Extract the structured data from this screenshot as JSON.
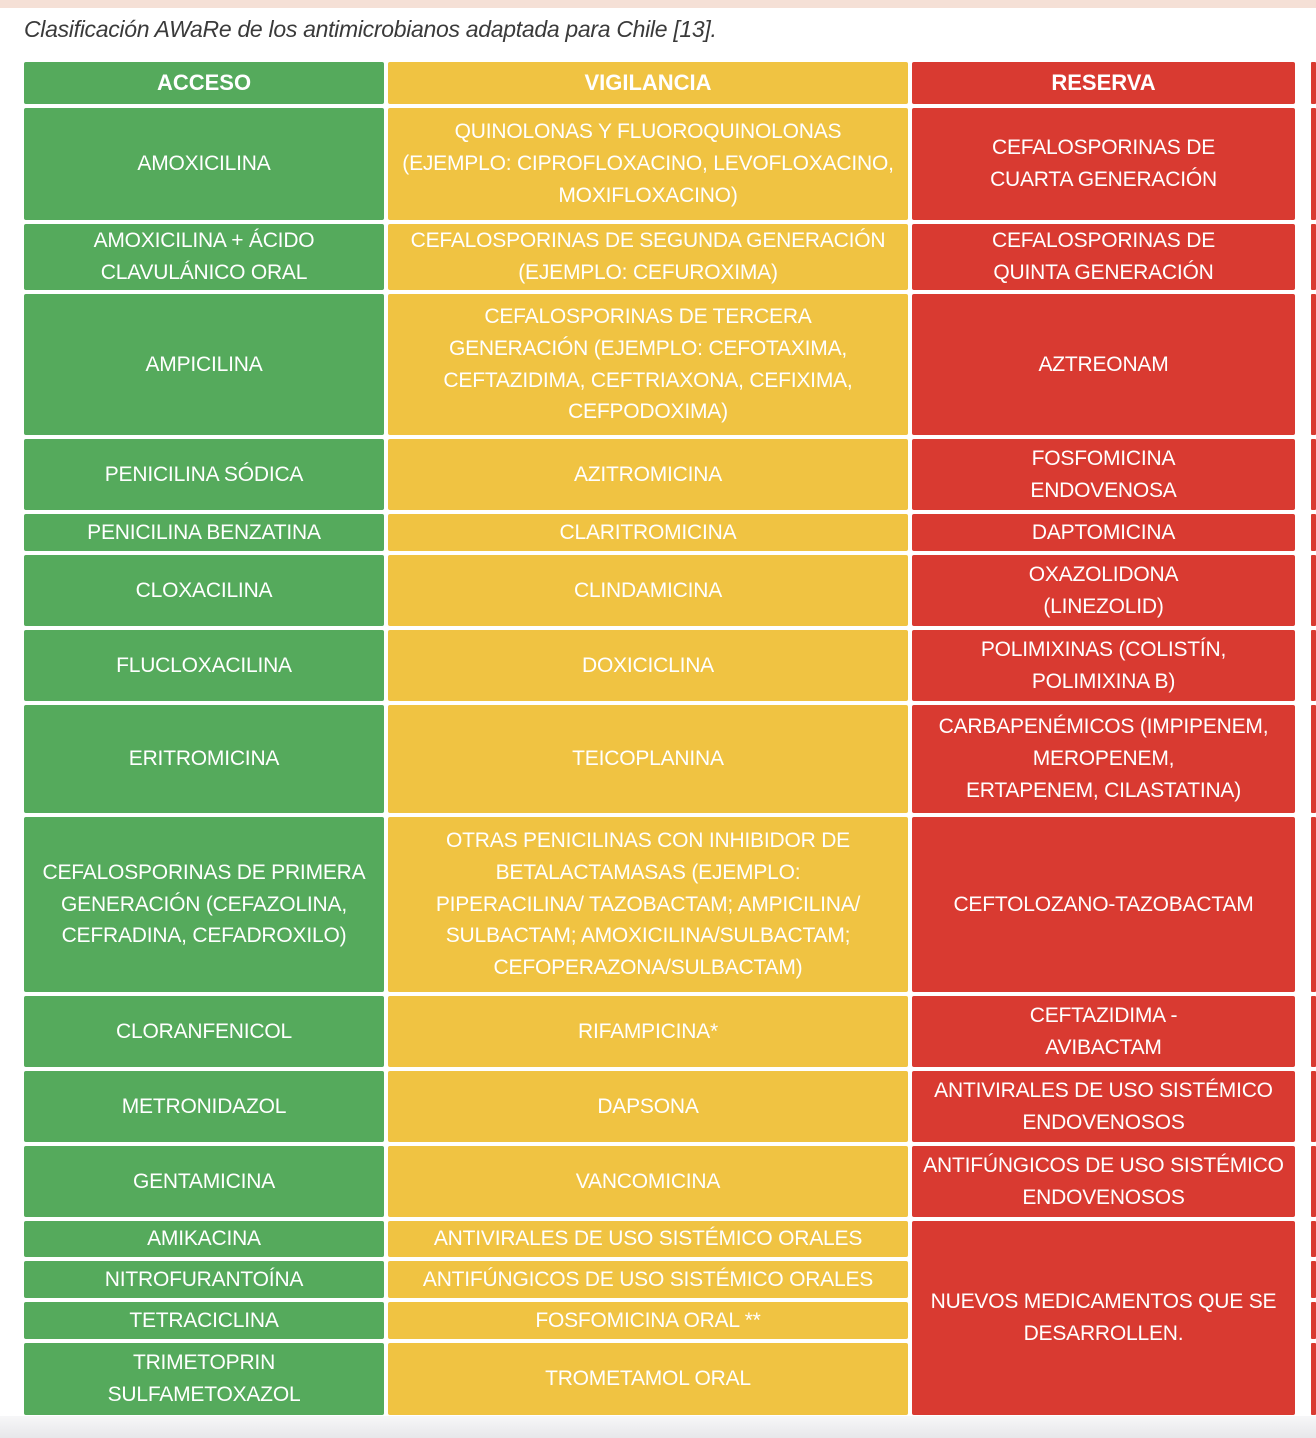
{
  "page": {
    "caption": "Clasificación AWaRe de los antimicrobianos adaptada para Chile [13]."
  },
  "colors": {
    "access_green": "#55aa5c",
    "watch_yellow": "#f0c342",
    "reserve_red": "#d93a31",
    "cell_text": "#ffffff",
    "caption_text": "#3a3a3a",
    "top_strip": "#f5e0d6",
    "bottom_strip": "#e7e7ea"
  },
  "table": {
    "headers": [
      {
        "key": "acceso",
        "label": "ACCESO",
        "color": "#55aa5c"
      },
      {
        "key": "vigilancia",
        "label": "VIGILANCIA",
        "color": "#f0c342"
      },
      {
        "key": "reserva",
        "label": "RESERVA",
        "color": "#d93a31"
      }
    ],
    "rows": [
      {
        "acceso": "AMOXICILINA",
        "vigilancia": "QUINOLONAS Y FLUOROQUINOLONAS\n(EJEMPLO: CIPROFLOXACINO, LEVOFLOXACINO,\nMOXIFLOXACINO)"
      },
      {
        "acceso": "AMOXICILINA + ÁCIDO\nCLAVULÁNICO ORAL",
        "vigilancia": "CEFALOSPORINAS DE SEGUNDA GENERACIÓN\n(EJEMPLO: CEFUROXIMA)"
      },
      {
        "acceso": "AMPICILINA",
        "vigilancia": "CEFALOSPORINAS DE TERCERA\nGENERACIÓN (EJEMPLO: CEFOTAXIMA,\nCEFTAZIDIMA, CEFTRIAXONA, CEFIXIMA,\nCEFPODOXIMA)"
      },
      {
        "acceso": "PENICILINA SÓDICA",
        "vigilancia": "AZITROMICINA"
      },
      {
        "acceso": "PENICILINA BENZATINA",
        "vigilancia": "CLARITROMICINA"
      },
      {
        "acceso": "CLOXACILINA",
        "vigilancia": "CLINDAMICINA"
      },
      {
        "acceso": "FLUCLOXACILINA",
        "vigilancia": "DOXICICLINA"
      },
      {
        "acceso": "ERITROMICINA",
        "vigilancia": "TEICOPLANINA"
      },
      {
        "acceso": "CEFALOSPORINAS DE PRIMERA\nGENERACIÓN (CEFAZOLINA,\nCEFRADINA, CEFADROXILO)",
        "vigilancia": "OTRAS PENICILINAS CON INHIBIDOR DE\nBETALACTAMASAS (EJEMPLO:\nPIPERACILINA/ TAZOBACTAM; AMPICILINA/\nSULBACTAM; AMOXICILINA/SULBACTAM;\nCEFOPERAZONA/SULBACTAM)"
      },
      {
        "acceso": "CLORANFENICOL",
        "vigilancia": "RIFAMPICINA*"
      },
      {
        "acceso": "METRONIDAZOL",
        "vigilancia": "DAPSONA"
      },
      {
        "acceso": "GENTAMICINA",
        "vigilancia": "VANCOMICINA"
      },
      {
        "acceso": "AMIKACINA",
        "vigilancia": "ANTIVIRALES DE USO SISTÉMICO ORALES"
      },
      {
        "acceso": "NITROFURANTOÍNA",
        "vigilancia": "ANTIFÚNGICOS DE USO SISTÉMICO ORALES"
      },
      {
        "acceso": "TETRACICLINA",
        "vigilancia": "FOSFOMICINA ORAL **"
      },
      {
        "acceso": "TRIMETOPRIN\nSULFAMETOXAZOL",
        "vigilancia": "TROMETAMOL ORAL"
      }
    ],
    "reserva_cells": [
      {
        "text": "CEFALOSPORINAS DE\nCUARTA GENERACIÓN",
        "span": 1
      },
      {
        "text": "CEFALOSPORINAS DE\nQUINTA GENERACIÓN",
        "span": 1
      },
      {
        "text": "AZTREONAM",
        "span": 1
      },
      {
        "text": "FOSFOMICINA\nENDOVENOSA",
        "span": 1
      },
      {
        "text": "DAPTOMICINA",
        "span": 1
      },
      {
        "text": "OXAZOLIDONA\n(LINEZOLID)",
        "span": 1
      },
      {
        "text": "POLIMIXINAS (COLISTÍN,\nPOLIMIXINA B)",
        "span": 1
      },
      {
        "text": "CARBAPENÉMICOS (IMPIPENEM,\nMEROPENEM,\nERTAPENEM, CILASTATINA)",
        "span": 1
      },
      {
        "text": "CEFTOLOZANO-TAZOBACTAM",
        "span": 1
      },
      {
        "text": "CEFTAZIDIMA -\nAVIBACTAM",
        "span": 1
      },
      {
        "text": "ANTIVIRALES DE USO SISTÉMICO\nENDOVENOSOS",
        "span": 1
      },
      {
        "text": "ANTIFÚNGICOS DE USO SISTÉMICO\nENDOVENOSOS",
        "span": 1
      },
      {
        "text": "NUEVOS MEDICAMENTOS QUE SE\nDESARROLLEN.",
        "span": 4
      }
    ]
  }
}
